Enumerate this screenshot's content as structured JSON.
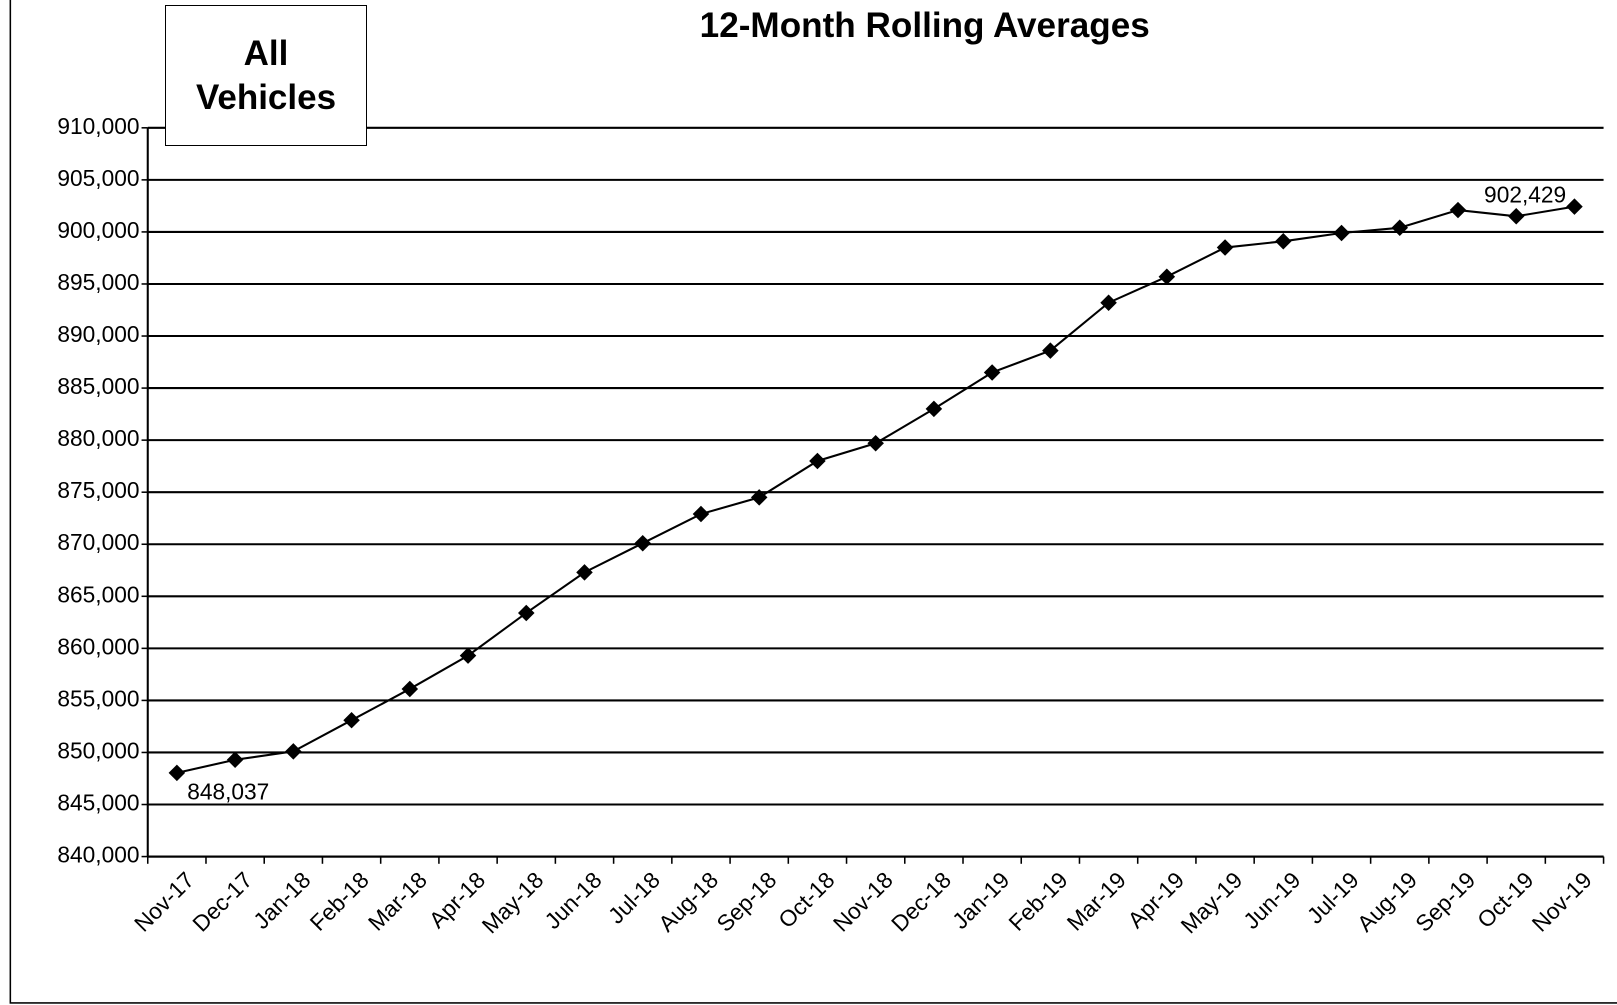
{
  "chart_data": {
    "type": "line",
    "title": "12-Month Rolling Averages",
    "annotation": "All Vehicles",
    "categories": [
      "Nov-17",
      "Dec-17",
      "Jan-18",
      "Feb-18",
      "Mar-18",
      "Apr-18",
      "May-18",
      "Jun-18",
      "Jul-18",
      "Aug-18",
      "Sep-18",
      "Oct-18",
      "Nov-18",
      "Dec-18",
      "Jan-19",
      "Feb-19",
      "Mar-19",
      "Apr-19",
      "May-19",
      "Jun-19",
      "Jul-19",
      "Aug-19",
      "Sep-19",
      "Oct-19",
      "Nov-19"
    ],
    "values": [
      848037,
      849300,
      850100,
      853100,
      856100,
      859300,
      863400,
      867300,
      870100,
      872900,
      874500,
      878000,
      879700,
      883000,
      886500,
      888600,
      893200,
      895700,
      898500,
      899100,
      899900,
      900400,
      902100,
      901500,
      902429
    ],
    "value_labels": [
      "848,037",
      null,
      null,
      null,
      null,
      null,
      null,
      null,
      null,
      null,
      null,
      null,
      null,
      null,
      null,
      null,
      null,
      null,
      null,
      null,
      null,
      null,
      null,
      null,
      "902,429"
    ],
    "color": "#000000",
    "ylim": [
      840000,
      910000
    ],
    "yticks": [
      {
        "value": 840000,
        "label": "840,000"
      },
      {
        "value": 845000,
        "label": "845,000"
      },
      {
        "value": 850000,
        "label": "850,000"
      },
      {
        "value": 855000,
        "label": "855,000"
      },
      {
        "value": 860000,
        "label": "860,000"
      },
      {
        "value": 865000,
        "label": "865,000"
      },
      {
        "value": 870000,
        "label": "870,000"
      },
      {
        "value": 875000,
        "label": "875,000"
      },
      {
        "value": 880000,
        "label": "880,000"
      },
      {
        "value": 885000,
        "label": "885,000"
      },
      {
        "value": 890000,
        "label": "890,000"
      },
      {
        "value": 895000,
        "label": "895,000"
      },
      {
        "value": 900000,
        "label": "900,000"
      },
      {
        "value": 905000,
        "label": "905,000"
      },
      {
        "value": 910000,
        "label": "910,000"
      }
    ],
    "grid": true
  }
}
